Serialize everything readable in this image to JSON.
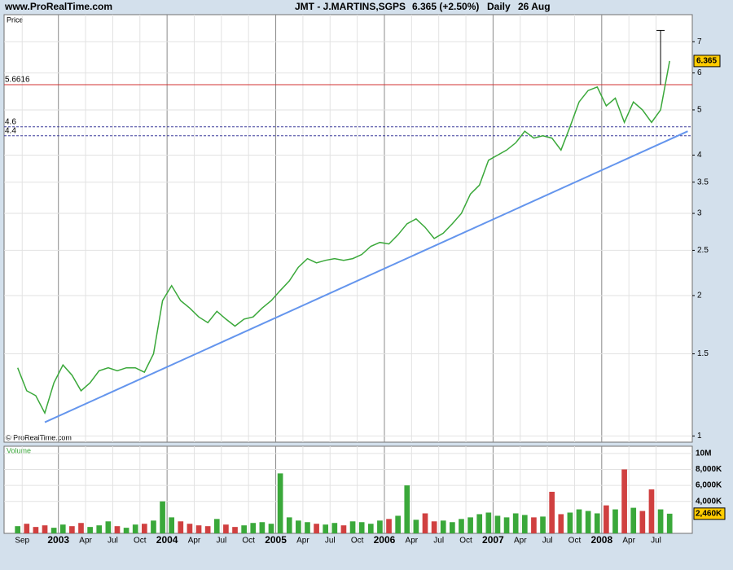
{
  "header": {
    "site": "www.ProRealTime.com",
    "title": "JMT - J.MARTINS,SGPS",
    "quote": "6.365 (+2.50%)",
    "period": "Daily",
    "date": "26 Aug"
  },
  "copyright": "© ProRealTime.com",
  "chart_data": [
    {
      "type": "line",
      "label": "Price",
      "log_scale": true,
      "grid": true,
      "color": "#3aa83a",
      "x": [
        "2002-08",
        "2002-09",
        "2002-10",
        "2002-11",
        "2002-12",
        "2003-01",
        "2003-02",
        "2003-03",
        "2003-04",
        "2003-05",
        "2003-06",
        "2003-07",
        "2003-08",
        "2003-09",
        "2003-10",
        "2003-11",
        "2003-12",
        "2004-01",
        "2004-02",
        "2004-03",
        "2004-04",
        "2004-05",
        "2004-06",
        "2004-07",
        "2004-08",
        "2004-09",
        "2004-10",
        "2004-11",
        "2004-12",
        "2005-01",
        "2005-02",
        "2005-03",
        "2005-04",
        "2005-05",
        "2005-06",
        "2005-07",
        "2005-08",
        "2005-09",
        "2005-10",
        "2005-11",
        "2005-12",
        "2006-01",
        "2006-02",
        "2006-03",
        "2006-04",
        "2006-05",
        "2006-06",
        "2006-07",
        "2006-08",
        "2006-09",
        "2006-10",
        "2006-11",
        "2006-12",
        "2007-01",
        "2007-02",
        "2007-03",
        "2007-04",
        "2007-05",
        "2007-06",
        "2007-07",
        "2007-08",
        "2007-09",
        "2007-10",
        "2007-11",
        "2007-12",
        "2008-01",
        "2008-02",
        "2008-03",
        "2008-04",
        "2008-05",
        "2008-06",
        "2008-07",
        "2008-08"
      ],
      "values": [
        1.4,
        1.25,
        1.22,
        1.12,
        1.3,
        1.42,
        1.35,
        1.25,
        1.3,
        1.38,
        1.4,
        1.38,
        1.4,
        1.4,
        1.37,
        1.5,
        1.95,
        2.1,
        1.95,
        1.88,
        1.8,
        1.75,
        1.85,
        1.78,
        1.72,
        1.78,
        1.8,
        1.88,
        1.95,
        2.05,
        2.15,
        2.3,
        2.4,
        2.35,
        2.38,
        2.4,
        2.38,
        2.4,
        2.45,
        2.55,
        2.6,
        2.58,
        2.7,
        2.85,
        2.92,
        2.8,
        2.65,
        2.72,
        2.85,
        3.0,
        3.3,
        3.45,
        3.9,
        4.0,
        4.1,
        4.25,
        4.5,
        4.35,
        4.4,
        4.35,
        4.1,
        4.6,
        5.2,
        5.5,
        5.6,
        5.1,
        5.3,
        4.7,
        5.2,
        5.0,
        4.7,
        5.0,
        6.365
      ],
      "last_value": 6.365,
      "ylim": [
        0.97,
        8
      ],
      "yticks": [
        1,
        1.5,
        2,
        2.5,
        3,
        3.5,
        4,
        5,
        6,
        7
      ],
      "hlines": [
        {
          "value": 5.6616,
          "color": "#d03030",
          "dashed": false
        },
        {
          "value": 4.6,
          "color": "#3a3a9a",
          "dashed": true
        },
        {
          "value": 4.4,
          "color": "#3a3a9a",
          "dashed": true
        }
      ],
      "trendline": {
        "x": [
          "2002-11",
          "2008-10"
        ],
        "values": [
          1.07,
          4.5
        ],
        "color": "#6495ed"
      },
      "marker": {
        "x": "2008-07",
        "values": [
          5.6616,
          7.4
        ],
        "color": "#000000"
      }
    },
    {
      "type": "bar",
      "label": "Volume",
      "grid": true,
      "up_color": "#3aa83a",
      "down_color": "#d04040",
      "values": [
        900000,
        1200000,
        800000,
        1000000,
        700000,
        1100000,
        900000,
        1300000,
        800000,
        1000000,
        1500000,
        900000,
        700000,
        1100000,
        1200000,
        1600000,
        4000000,
        2000000,
        1500000,
        1200000,
        1000000,
        900000,
        1800000,
        1100000,
        800000,
        1000000,
        1300000,
        1400000,
        1200000,
        7500000,
        2000000,
        1600000,
        1400000,
        1200000,
        1100000,
        1300000,
        1000000,
        1500000,
        1400000,
        1200000,
        1600000,
        1800000,
        2200000,
        6000000,
        1700000,
        2500000,
        1500000,
        1600000,
        1400000,
        1800000,
        2000000,
        2400000,
        2600000,
        2200000,
        2000000,
        2500000,
        2300000,
        2000000,
        2100000,
        5200000,
        2400000,
        2600000,
        3000000,
        2800000,
        2500000,
        3500000,
        3000000,
        8000000,
        3200000,
        2800000,
        5500000,
        3000000,
        2460000
      ],
      "last_value": {
        "value": 2460000,
        "label": "2,460K"
      },
      "ylim": [
        0,
        10900000
      ],
      "yticks": [
        {
          "value": 4000000,
          "label": "4,000K"
        },
        {
          "value": 6000000,
          "label": "6,000K"
        },
        {
          "value": 8000000,
          "label": "8,000K"
        },
        {
          "value": 10000000,
          "label": "10M"
        }
      ],
      "xlim": [
        "2002-07",
        "2008-11"
      ],
      "xticks": [
        {
          "value": "2002-09",
          "label": "Sep"
        },
        {
          "value": "2003-01",
          "label": "2003"
        },
        {
          "value": "2003-04",
          "label": "Apr"
        },
        {
          "value": "2003-07",
          "label": "Jul"
        },
        {
          "value": "2003-10",
          "label": "Oct"
        },
        {
          "value": "2004-01",
          "label": "2004"
        },
        {
          "value": "2004-04",
          "label": "Apr"
        },
        {
          "value": "2004-07",
          "label": "Jul"
        },
        {
          "value": "2004-10",
          "label": "Oct"
        },
        {
          "value": "2005-01",
          "label": "2005"
        },
        {
          "value": "2005-04",
          "label": "Apr"
        },
        {
          "value": "2005-07",
          "label": "Jul"
        },
        {
          "value": "2005-10",
          "label": "Oct"
        },
        {
          "value": "2006-01",
          "label": "2006"
        },
        {
          "value": "2006-04",
          "label": "Apr"
        },
        {
          "value": "2006-07",
          "label": "Jul"
        },
        {
          "value": "2006-10",
          "label": "Oct"
        },
        {
          "value": "2007-01",
          "label": "2007"
        },
        {
          "value": "2007-04",
          "label": "Apr"
        },
        {
          "value": "2007-07",
          "label": "Jul"
        },
        {
          "value": "2007-10",
          "label": "Oct"
        },
        {
          "value": "2008-01",
          "label": "2008"
        },
        {
          "value": "2008-04",
          "label": "Apr"
        },
        {
          "value": "2008-07",
          "label": "Jul"
        }
      ]
    }
  ]
}
